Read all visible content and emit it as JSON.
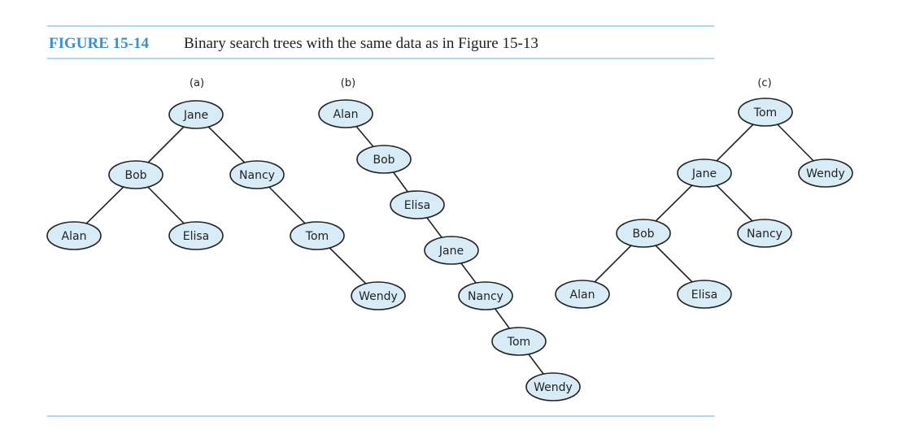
{
  "figure": {
    "label": "FIGURE 15-14",
    "caption": "Binary search trees with the same data as in Figure 15-13"
  },
  "trees": [
    {
      "label": "(a)",
      "nodes": [
        "Jane",
        "Bob",
        "Nancy",
        "Alan",
        "Elisa",
        "Tom",
        "Wendy"
      ]
    },
    {
      "label": "(b)",
      "nodes": [
        "Alan",
        "Bob",
        "Elisa",
        "Jane",
        "Nancy",
        "Tom",
        "Wendy"
      ]
    },
    {
      "label": "(c)",
      "nodes": [
        "Tom",
        "Jane",
        "Wendy",
        "Bob",
        "Nancy",
        "Alan",
        "Elisa"
      ]
    }
  ]
}
